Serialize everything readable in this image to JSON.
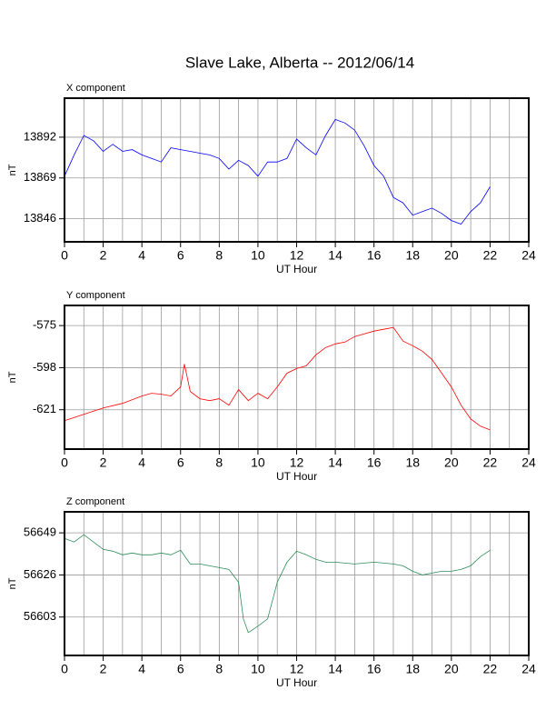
{
  "title": "Slave Lake, Alberta -- 2012/06/14",
  "chart_data": [
    {
      "type": "line",
      "title": "X component",
      "xlabel": "UT Hour",
      "ylabel": "nT",
      "color": "#0000ff",
      "xlim": [
        0,
        24
      ],
      "xticks": [
        0,
        2,
        4,
        6,
        8,
        10,
        12,
        14,
        16,
        18,
        20,
        22,
        24
      ],
      "x_grid_step": 1,
      "ylim": [
        13833,
        13914
      ],
      "yticks": [
        13846,
        13869,
        13892
      ],
      "grid": true,
      "x": [
        0,
        0.5,
        1,
        1.5,
        2,
        2.5,
        3,
        3.5,
        4,
        4.5,
        5,
        5.5,
        6,
        6.5,
        7,
        7.5,
        8,
        8.5,
        9,
        9.5,
        10,
        10.5,
        11,
        11.5,
        12,
        12.5,
        13,
        13.5,
        14,
        14.5,
        15,
        15.5,
        16,
        16.5,
        17,
        17.5,
        18,
        18.5,
        19,
        19.5,
        20,
        20.5,
        21,
        21.5,
        22
      ],
      "values": [
        13870,
        13882,
        13893,
        13890,
        13884,
        13888,
        13884,
        13885,
        13882,
        13880,
        13878,
        13886,
        13885,
        13884,
        13883,
        13882,
        13880,
        13874,
        13879,
        13876,
        13870,
        13878,
        13878,
        13880,
        13891,
        13886,
        13882,
        13893,
        13902,
        13900,
        13896,
        13887,
        13876,
        13870,
        13858,
        13855,
        13848,
        13850,
        13852,
        13849,
        13845,
        13843,
        13850,
        13855,
        13864
      ]
    },
    {
      "type": "line",
      "title": "Y component",
      "xlabel": "UT Hour",
      "ylabel": "nT",
      "color": "#ff0000",
      "xlim": [
        0,
        24
      ],
      "xticks": [
        0,
        2,
        4,
        6,
        8,
        10,
        12,
        14,
        16,
        18,
        20,
        22,
        24
      ],
      "x_grid_step": 1,
      "ylim": [
        -642.5,
        -564
      ],
      "yticks": [
        -621,
        -598,
        -575
      ],
      "grid": true,
      "x": [
        0,
        1,
        2,
        3,
        4,
        4.5,
        5,
        5.5,
        6,
        6.2,
        6.5,
        7,
        7.5,
        8,
        8.5,
        9,
        9.5,
        10,
        10.5,
        11,
        11.5,
        12,
        12.5,
        13,
        13.5,
        14,
        14.5,
        15,
        15.5,
        16,
        16.5,
        17,
        17.5,
        18,
        18.5,
        19,
        19.5,
        20,
        20.5,
        21,
        21.5,
        22
      ],
      "values": [
        -627,
        -623.5,
        -620,
        -617.5,
        -613.5,
        -612,
        -612.5,
        -613.5,
        -608.5,
        -596,
        -611,
        -615,
        -616,
        -615,
        -618.5,
        -610,
        -616,
        -612,
        -615,
        -608.5,
        -601,
        -598.5,
        -597,
        -591,
        -587,
        -585,
        -584,
        -581,
        -579.5,
        -578,
        -577,
        -576,
        -583.5,
        -586,
        -589,
        -593.5,
        -601,
        -608.5,
        -618.5,
        -626,
        -630,
        -632
      ]
    },
    {
      "type": "line",
      "title": "Z component",
      "xlabel": "UT Hour",
      "ylabel": "nT",
      "color": "#2e8b57",
      "xlim": [
        0,
        24
      ],
      "xticks": [
        0,
        2,
        4,
        6,
        8,
        10,
        12,
        14,
        16,
        18,
        20,
        22,
        24
      ],
      "x_grid_step": 1,
      "ylim": [
        56582,
        56660.5
      ],
      "yticks": [
        56603,
        56626,
        56649
      ],
      "grid": true,
      "x": [
        0,
        0.5,
        1,
        1.5,
        2,
        2.5,
        3,
        3.5,
        4,
        4.5,
        5,
        5.5,
        6,
        6.5,
        7,
        7.5,
        8,
        8.5,
        9,
        9.25,
        9.5,
        10,
        10.5,
        11,
        11.5,
        12,
        12.5,
        13,
        13.5,
        14,
        15,
        16,
        17,
        17.5,
        18,
        18.5,
        19,
        19.5,
        20,
        20.5,
        21,
        21.5,
        22
      ],
      "values": [
        56646,
        56644,
        56648,
        56644,
        56640,
        56639,
        56637,
        56638,
        56637,
        56637,
        56638,
        56637,
        56639.5,
        56632,
        56632,
        56631,
        56630,
        56629,
        56622,
        56602,
        56594.5,
        56598,
        56602,
        56622,
        56633,
        56639,
        56637,
        56634.5,
        56633,
        56633,
        56632,
        56633,
        56632,
        56631,
        56628,
        56626,
        56627,
        56628,
        56628,
        56629,
        56631,
        56636,
        56639.5
      ]
    }
  ]
}
